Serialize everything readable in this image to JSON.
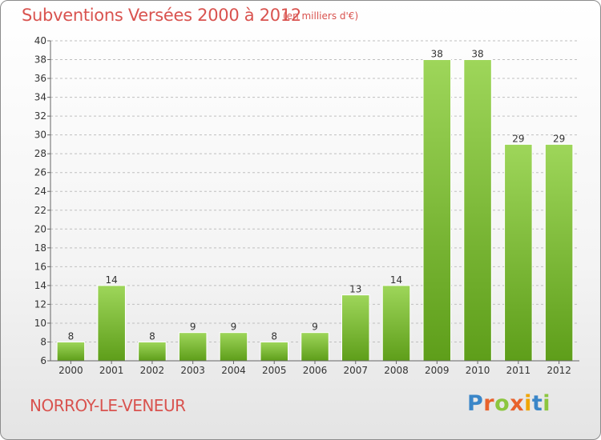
{
  "title": "Subventions Versées 2000 à 2012",
  "subtitle": "(en milliers d'€)",
  "commune": "NORROY-LE-VENEUR",
  "logo": {
    "text": "Proxiti",
    "letter_colors": [
      "#3a86c8",
      "#e8622c",
      "#8cc63f",
      "#e8622c",
      "#f0a500",
      "#3a86c8",
      "#8cc63f"
    ]
  },
  "colors": {
    "title": "#d9534f",
    "bar_top": "#9ed65a",
    "bar_bottom": "#5e9e1a",
    "grid": "#bfbfbf",
    "axis": "#666666"
  },
  "chart_data": {
    "type": "bar",
    "title": "Subventions Versées 2000 à 2012",
    "xlabel": "",
    "ylabel": "",
    "categories": [
      "2000",
      "2001",
      "2002",
      "2003",
      "2004",
      "2005",
      "2006",
      "2007",
      "2008",
      "2009",
      "2010",
      "2011",
      "2012"
    ],
    "values": [
      8,
      14,
      8,
      9,
      9,
      8,
      9,
      13,
      14,
      38,
      38,
      29,
      29
    ],
    "ylim": [
      6,
      40
    ],
    "yticks": [
      6,
      8,
      10,
      12,
      14,
      16,
      18,
      20,
      22,
      24,
      26,
      28,
      30,
      32,
      34,
      36,
      38,
      40
    ],
    "grid": true,
    "legend": "none"
  }
}
